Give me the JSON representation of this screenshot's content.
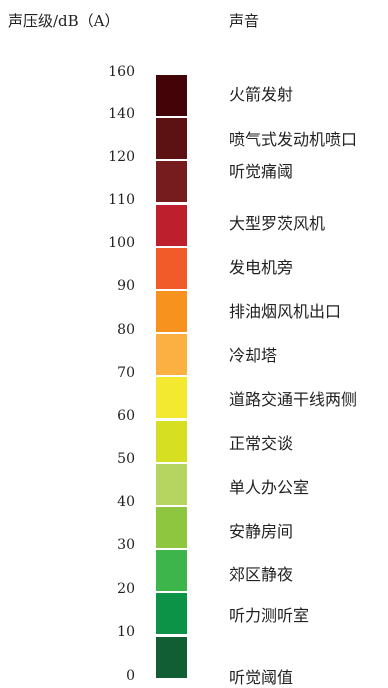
{
  "header": {
    "left": "声压级/dB（A）",
    "right": "声音"
  },
  "scale": {
    "ticks": [
      "160",
      "140",
      "120",
      "110",
      "100",
      "90",
      "80",
      "70",
      "60",
      "50",
      "40",
      "30",
      "20",
      "10",
      "0"
    ],
    "segments": [
      {
        "color": "#420406"
      },
      {
        "color": "#5c1212"
      },
      {
        "color": "#761c1e"
      },
      {
        "color": "#be1f2c"
      },
      {
        "color": "#f15b29"
      },
      {
        "color": "#f7921e"
      },
      {
        "color": "#fdb042"
      },
      {
        "color": "#f3e930"
      },
      {
        "color": "#d6df22"
      },
      {
        "color": "#b6d560"
      },
      {
        "color": "#8ec63f"
      },
      {
        "color": "#3db54a"
      },
      {
        "color": "#0c9347"
      },
      {
        "color": "#125e34"
      }
    ]
  },
  "sources": [
    "火箭发射",
    "喷气式发动机喷口",
    "听觉痛阈",
    "大型罗茨风机",
    "发电机旁",
    "排油烟风机出口",
    "冷却塔",
    "道路交通干线两侧",
    "正常交谈",
    "单人办公室",
    "安静房间",
    "郊区静夜",
    "听力测听室",
    "听觉阈值"
  ]
}
